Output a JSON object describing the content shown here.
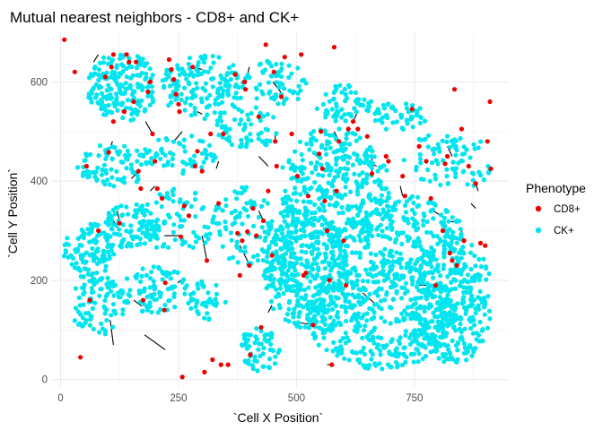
{
  "chart_data": {
    "type": "scatter",
    "title": "Mutual nearest neighbors - CD8+ and CK+",
    "xlabel": "`Cell X Position`",
    "ylabel": "`Cell Y Position`",
    "xlim": [
      -20,
      950
    ],
    "ylim": [
      -15,
      700
    ],
    "x_ticks": [
      0,
      250,
      500,
      750
    ],
    "x_tick_labels": [
      "0",
      "250",
      "500",
      "750"
    ],
    "y_ticks": [
      0,
      200,
      400,
      600
    ],
    "y_tick_labels": [
      "0",
      "200",
      "400",
      "600"
    ],
    "grid": true,
    "legend": {
      "title": "Phenotype",
      "position": "right",
      "entries": [
        {
          "label": "CD8+",
          "color": "#ee0000"
        },
        {
          "label": "CK+",
          "color": "#00e5ee"
        }
      ]
    },
    "series": [
      {
        "name": "CD8+",
        "color": "#ee0000",
        "points": [
          [
            8,
            685
          ],
          [
            30,
            620
          ],
          [
            42,
            45
          ],
          [
            55,
            430
          ],
          [
            62,
            160
          ],
          [
            80,
            300
          ],
          [
            95,
            610
          ],
          [
            102,
            458
          ],
          [
            108,
            630
          ],
          [
            112,
            655
          ],
          [
            112,
            520
          ],
          [
            125,
            315
          ],
          [
            135,
            540
          ],
          [
            140,
            655
          ],
          [
            145,
            640
          ],
          [
            155,
            560
          ],
          [
            160,
            640
          ],
          [
            165,
            420
          ],
          [
            170,
            385
          ],
          [
            175,
            160
          ],
          [
            185,
            580
          ],
          [
            190,
            600
          ],
          [
            195,
            495
          ],
          [
            200,
            440
          ],
          [
            205,
            385
          ],
          [
            215,
            365
          ],
          [
            220,
            140
          ],
          [
            222,
            195
          ],
          [
            230,
            645
          ],
          [
            235,
            625
          ],
          [
            240,
            605
          ],
          [
            245,
            575
          ],
          [
            250,
            555
          ],
          [
            252,
            540
          ],
          [
            255,
            288
          ],
          [
            258,
            5
          ],
          [
            262,
            350
          ],
          [
            272,
            330
          ],
          [
            280,
            630
          ],
          [
            285,
            430
          ],
          [
            290,
            460
          ],
          [
            300,
            420
          ],
          [
            305,
            15
          ],
          [
            310,
            240
          ],
          [
            318,
            495
          ],
          [
            322,
            40
          ],
          [
            335,
            355
          ],
          [
            340,
            30
          ],
          [
            345,
            495
          ],
          [
            355,
            30
          ],
          [
            370,
            615
          ],
          [
            375,
            295
          ],
          [
            380,
            210
          ],
          [
            385,
            280
          ],
          [
            390,
            600
          ],
          [
            392,
            585
          ],
          [
            396,
            298
          ],
          [
            400,
            230
          ],
          [
            402,
            50
          ],
          [
            408,
            345
          ],
          [
            415,
            290
          ],
          [
            420,
            530
          ],
          [
            425,
            105
          ],
          [
            430,
            320
          ],
          [
            435,
            675
          ],
          [
            440,
            380
          ],
          [
            448,
            250
          ],
          [
            452,
            620
          ],
          [
            455,
            480
          ],
          [
            458,
            430
          ],
          [
            468,
            570
          ],
          [
            475,
            650
          ],
          [
            490,
            495
          ],
          [
            502,
            410
          ],
          [
            510,
            655
          ],
          [
            515,
            210
          ],
          [
            520,
            215
          ],
          [
            525,
            370
          ],
          [
            535,
            110
          ],
          [
            548,
            455
          ],
          [
            552,
            500
          ],
          [
            555,
            425
          ],
          [
            560,
            360
          ],
          [
            565,
            300
          ],
          [
            570,
            200
          ],
          [
            575,
            30
          ],
          [
            580,
            670
          ],
          [
            585,
            380
          ],
          [
            590,
            480
          ],
          [
            600,
            280
          ],
          [
            605,
            190
          ],
          [
            610,
            505
          ],
          [
            620,
            520
          ],
          [
            630,
            505
          ],
          [
            650,
            490
          ],
          [
            660,
            415
          ],
          [
            690,
            450
          ],
          [
            695,
            440
          ],
          [
            725,
            410
          ],
          [
            730,
            370
          ],
          [
            745,
            545
          ],
          [
            760,
            470
          ],
          [
            775,
            440
          ],
          [
            785,
            365
          ],
          [
            795,
            190
          ],
          [
            810,
            300
          ],
          [
            815,
            435
          ],
          [
            820,
            450
          ],
          [
            825,
            255
          ],
          [
            830,
            240
          ],
          [
            835,
            585
          ],
          [
            840,
            230
          ],
          [
            850,
            505
          ],
          [
            855,
            280
          ],
          [
            865,
            430
          ],
          [
            880,
            395
          ],
          [
            890,
            275
          ],
          [
            900,
            270
          ],
          [
            905,
            480
          ],
          [
            910,
            560
          ],
          [
            912,
            425
          ]
        ]
      },
      {
        "name": "CK+",
        "color": "#00e5ee",
        "clusters": [
          {
            "cx": 130,
            "cy": 590,
            "rx": 75,
            "ry": 70,
            "n": 180
          },
          {
            "cx": 300,
            "cy": 590,
            "rx": 90,
            "ry": 65,
            "n": 150
          },
          {
            "cx": 460,
            "cy": 600,
            "rx": 70,
            "ry": 45,
            "n": 60
          },
          {
            "cx": 600,
            "cy": 555,
            "rx": 60,
            "ry": 40,
            "n": 60
          },
          {
            "cx": 720,
            "cy": 530,
            "rx": 55,
            "ry": 30,
            "n": 50
          },
          {
            "cx": 110,
            "cy": 430,
            "rx": 75,
            "ry": 45,
            "n": 80
          },
          {
            "cx": 250,
            "cy": 455,
            "rx": 80,
            "ry": 40,
            "n": 60
          },
          {
            "cx": 400,
            "cy": 510,
            "rx": 70,
            "ry": 45,
            "n": 60
          },
          {
            "cx": 820,
            "cy": 440,
            "rx": 100,
            "ry": 60,
            "n": 80
          },
          {
            "cx": 60,
            "cy": 260,
            "rx": 55,
            "ry": 55,
            "n": 110
          },
          {
            "cx": 150,
            "cy": 310,
            "rx": 60,
            "ry": 50,
            "n": 90
          },
          {
            "cx": 250,
            "cy": 320,
            "rx": 75,
            "ry": 70,
            "n": 80
          },
          {
            "cx": 390,
            "cy": 310,
            "rx": 70,
            "ry": 80,
            "n": 80
          },
          {
            "cx": 80,
            "cy": 150,
            "rx": 60,
            "ry": 60,
            "n": 90
          },
          {
            "cx": 200,
            "cy": 180,
            "rx": 70,
            "ry": 50,
            "n": 80
          },
          {
            "cx": 310,
            "cy": 160,
            "rx": 40,
            "ry": 40,
            "n": 40
          },
          {
            "cx": 420,
            "cy": 60,
            "rx": 45,
            "ry": 45,
            "n": 60
          },
          {
            "cx": 580,
            "cy": 370,
            "rx": 120,
            "ry": 140,
            "n": 420
          },
          {
            "cx": 520,
            "cy": 220,
            "rx": 90,
            "ry": 120,
            "n": 320
          },
          {
            "cx": 680,
            "cy": 130,
            "rx": 160,
            "ry": 110,
            "n": 520
          },
          {
            "cx": 830,
            "cy": 160,
            "rx": 90,
            "ry": 130,
            "n": 320
          },
          {
            "cx": 740,
            "cy": 300,
            "rx": 110,
            "ry": 70,
            "n": 180
          },
          {
            "cx": 460,
            "cy": 240,
            "rx": 40,
            "ry": 60,
            "n": 60
          }
        ]
      }
    ],
    "pairs": [
      [
        42,
        45,
        42,
        45
      ],
      [
        105,
        120,
        112,
        70
      ],
      [
        178,
        90,
        222,
        60
      ],
      [
        155,
        160,
        172,
        148
      ],
      [
        125,
        300,
        112,
        320
      ],
      [
        220,
        290,
        258,
        290
      ],
      [
        255,
        200,
        248,
        195
      ],
      [
        300,
        290,
        310,
        240
      ],
      [
        380,
        270,
        400,
        232
      ],
      [
        420,
        340,
        430,
        320
      ],
      [
        440,
        135,
        448,
        150
      ],
      [
        505,
        115,
        535,
        110
      ],
      [
        640,
        175,
        670,
        150
      ],
      [
        760,
        190,
        795,
        190
      ],
      [
        850,
        300,
        855,
        275
      ],
      [
        880,
        395,
        885,
        380
      ],
      [
        850,
        320,
        828,
        318
      ],
      [
        790,
        340,
        815,
        325
      ],
      [
        720,
        390,
        725,
        370
      ],
      [
        455,
        500,
        455,
        480
      ],
      [
        420,
        450,
        440,
        430
      ],
      [
        400,
        630,
        392,
        595
      ],
      [
        300,
        625,
        280,
        630
      ],
      [
        290,
        540,
        300,
        535
      ],
      [
        180,
        520,
        195,
        495
      ],
      [
        240,
        480,
        258,
        500
      ],
      [
        120,
        340,
        125,
        318
      ],
      [
        110,
        480,
        102,
        458
      ],
      [
        70,
        640,
        80,
        655
      ],
      [
        470,
        575,
        450,
        600
      ],
      [
        580,
        500,
        590,
        480
      ],
      [
        630,
        540,
        620,
        520
      ],
      [
        660,
        450,
        660,
        415
      ],
      [
        670,
        430,
        655,
        435
      ],
      [
        830,
        450,
        820,
        470
      ],
      [
        870,
        355,
        880,
        345
      ],
      [
        565,
        30,
        575,
        30
      ],
      [
        330,
        425,
        335,
        440
      ],
      [
        150,
        405,
        165,
        420
      ],
      [
        190,
        380,
        200,
        390
      ]
    ]
  }
}
